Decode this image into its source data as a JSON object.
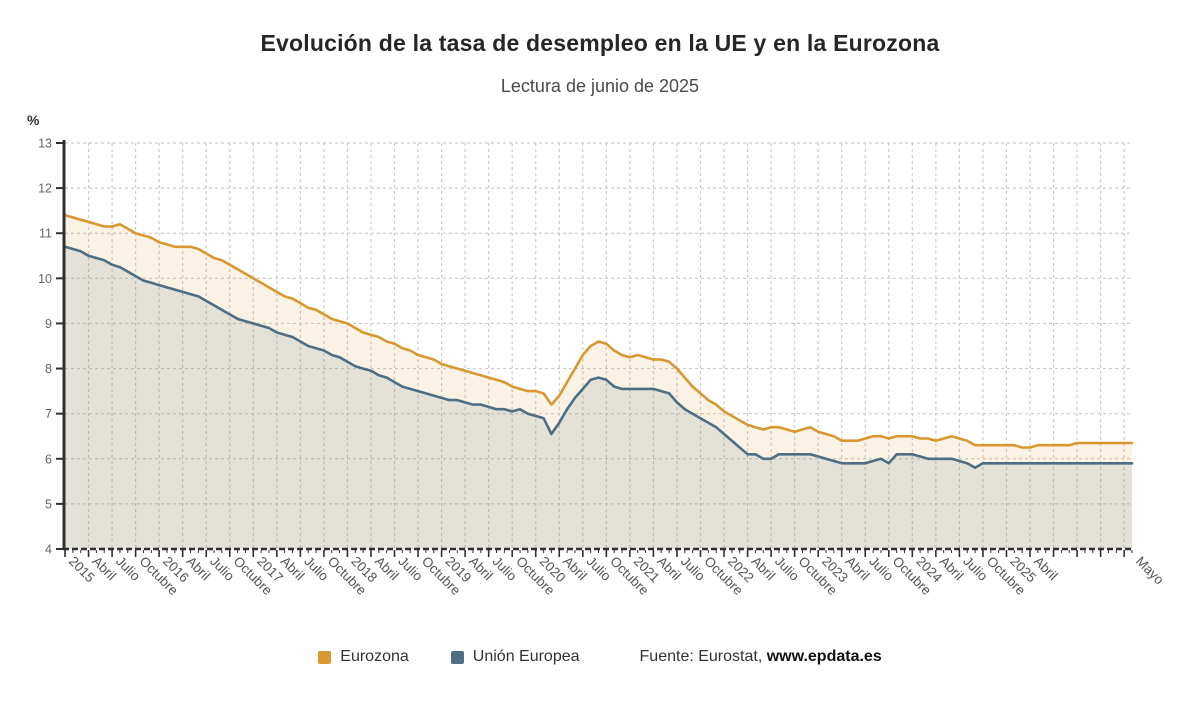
{
  "title": "Evolución de la tasa de desempleo en la UE y en la Eurozona",
  "subtitle": "Lectura de junio de 2025",
  "y_axis": {
    "unit_label": "%",
    "min": 4,
    "max": 13,
    "ticks": [
      4,
      5,
      6,
      7,
      8,
      9,
      10,
      11,
      12,
      13
    ]
  },
  "legend": {
    "items": [
      {
        "label": "Eurozona"
      },
      {
        "label": "Unión Europea"
      }
    ],
    "source_prefix": "Fuente: Eurostat,",
    "source_link": "www.epdata.es"
  },
  "colors": {
    "eurozona": "#D9982F",
    "union_europea": "#4E6E84",
    "eurozona_fill": "rgba(217,152,47,0.13)",
    "union_europea_fill": "rgba(78,110,132,0.12)",
    "grid": "#cccccc",
    "axis": "#2f2f2f",
    "tick_text": "#666666",
    "x_label_text": "#555555"
  },
  "chart_data": {
    "type": "area",
    "title": "Evolución de la tasa de desempleo en la UE y en la Eurozona",
    "subtitle": "Lectura de junio de 2025",
    "ylabel": "%",
    "ylim": [
      4,
      13
    ],
    "grid": true,
    "legend_position": "bottom",
    "x_labels": [
      "2015",
      "",
      "",
      "Abril",
      "",
      "",
      "Julio",
      "",
      "",
      "Octubre",
      "",
      "",
      "2016",
      "",
      "",
      "Abril",
      "",
      "",
      "Julio",
      "",
      "",
      "Octubre",
      "",
      "",
      "2017",
      "",
      "",
      "Abril",
      "",
      "",
      "Julio",
      "",
      "",
      "Octubre",
      "",
      "",
      "2018",
      "",
      "",
      "Abril",
      "",
      "",
      "Julio",
      "",
      "",
      "Octubre",
      "",
      "",
      "2019",
      "",
      "",
      "Abril",
      "",
      "",
      "Julio",
      "",
      "",
      "Octubre",
      "",
      "",
      "2020",
      "",
      "",
      "Abril",
      "",
      "",
      "Julio",
      "",
      "",
      "Octubre",
      "",
      "",
      "2021",
      "",
      "",
      "Abril",
      "",
      "",
      "Julio",
      "",
      "",
      "Octubre",
      "",
      "",
      "2022",
      "",
      "",
      "Abril",
      "",
      "",
      "Julio",
      "",
      "",
      "Octubre",
      "",
      "",
      "2023",
      "",
      "",
      "Abril",
      "",
      "",
      "Julio",
      "",
      "",
      "Octubre",
      "",
      "",
      "2024",
      "",
      "",
      "Abril",
      "",
      "",
      "Julio",
      "",
      "",
      "Octubre",
      "",
      "",
      "2025",
      "",
      "",
      "Abril",
      "",
      "",
      "",
      "",
      "",
      "",
      "",
      "",
      "",
      "",
      "",
      "",
      "Mayo"
    ],
    "series": [
      {
        "name": "Eurozona",
        "color": "#D9982F",
        "fill": "rgba(217,152,47,0.13)",
        "values": [
          11.4,
          11.35,
          11.3,
          11.25,
          11.2,
          11.15,
          11.15,
          11.2,
          11.1,
          11.0,
          10.95,
          10.9,
          10.8,
          10.75,
          10.7,
          10.7,
          10.7,
          10.65,
          10.55,
          10.45,
          10.4,
          10.3,
          10.2,
          10.1,
          10.0,
          9.9,
          9.8,
          9.7,
          9.6,
          9.55,
          9.45,
          9.35,
          9.3,
          9.2,
          9.1,
          9.05,
          9.0,
          8.9,
          8.8,
          8.75,
          8.7,
          8.6,
          8.55,
          8.45,
          8.4,
          8.3,
          8.25,
          8.2,
          8.1,
          8.05,
          8.0,
          7.95,
          7.9,
          7.85,
          7.8,
          7.75,
          7.7,
          7.6,
          7.55,
          7.5,
          7.5,
          7.45,
          7.2,
          7.4,
          7.7,
          8.0,
          8.3,
          8.5,
          8.6,
          8.55,
          8.4,
          8.3,
          8.25,
          8.3,
          8.25,
          8.2,
          8.2,
          8.15,
          8.0,
          7.8,
          7.6,
          7.45,
          7.3,
          7.2,
          7.05,
          6.95,
          6.85,
          6.75,
          6.7,
          6.65,
          6.7,
          6.7,
          6.65,
          6.6,
          6.65,
          6.7,
          6.6,
          6.55,
          6.5,
          6.4,
          6.4,
          6.4,
          6.45,
          6.5,
          6.5,
          6.45,
          6.5,
          6.5,
          6.5,
          6.45,
          6.45,
          6.4,
          6.45,
          6.5,
          6.45,
          6.4,
          6.3,
          6.3,
          6.3,
          6.3,
          6.3,
          6.3,
          6.25,
          6.25,
          6.3,
          6.3,
          6.3,
          6.3,
          6.3,
          6.35,
          6.35,
          6.35,
          6.35,
          6.35,
          6.35,
          6.35,
          6.35
        ]
      },
      {
        "name": "Unión Europea",
        "color": "#4E6E84",
        "fill": "rgba(78,110,132,0.12)",
        "values": [
          10.7,
          10.65,
          10.6,
          10.5,
          10.45,
          10.4,
          10.3,
          10.25,
          10.15,
          10.05,
          9.95,
          9.9,
          9.85,
          9.8,
          9.75,
          9.7,
          9.65,
          9.6,
          9.5,
          9.4,
          9.3,
          9.2,
          9.1,
          9.05,
          9.0,
          8.95,
          8.9,
          8.8,
          8.75,
          8.7,
          8.6,
          8.5,
          8.45,
          8.4,
          8.3,
          8.25,
          8.15,
          8.05,
          8.0,
          7.95,
          7.85,
          7.8,
          7.7,
          7.6,
          7.55,
          7.5,
          7.45,
          7.4,
          7.35,
          7.3,
          7.3,
          7.25,
          7.2,
          7.2,
          7.15,
          7.1,
          7.1,
          7.05,
          7.1,
          7.0,
          6.95,
          6.9,
          6.55,
          6.8,
          7.1,
          7.35,
          7.55,
          7.75,
          7.8,
          7.75,
          7.6,
          7.55,
          7.55,
          7.55,
          7.55,
          7.55,
          7.5,
          7.45,
          7.25,
          7.1,
          7.0,
          6.9,
          6.8,
          6.7,
          6.55,
          6.4,
          6.25,
          6.1,
          6.1,
          6.0,
          6.0,
          6.1,
          6.1,
          6.1,
          6.1,
          6.1,
          6.05,
          6.0,
          5.95,
          5.9,
          5.9,
          5.9,
          5.9,
          5.95,
          6.0,
          5.9,
          6.1,
          6.1,
          6.1,
          6.05,
          6.0,
          6.0,
          6.0,
          6.0,
          5.95,
          5.9,
          5.8,
          5.9,
          5.9,
          5.9,
          5.9,
          5.9,
          5.9,
          5.9,
          5.9,
          5.9,
          5.9,
          5.9,
          5.9,
          5.9,
          5.9,
          5.9,
          5.9,
          5.9,
          5.9,
          5.9,
          5.9
        ]
      }
    ]
  }
}
